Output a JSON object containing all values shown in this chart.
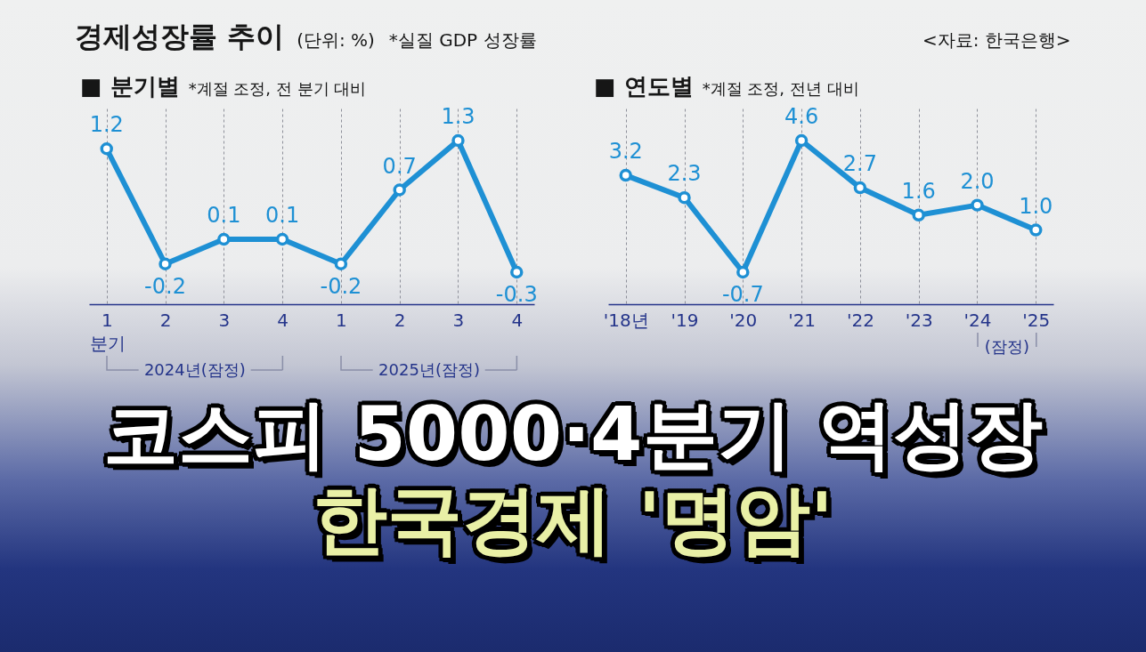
{
  "chart_data": [
    {
      "type": "line",
      "title": "■ 분기별",
      "subtitle": "*계절 조정, 전 분기 대비",
      "xlabel": "분기",
      "categories": [
        "1",
        "2",
        "3",
        "4",
        "1",
        "2",
        "3",
        "4"
      ],
      "values": [
        1.2,
        -0.2,
        0.1,
        0.1,
        -0.2,
        0.7,
        1.3,
        -0.3
      ],
      "value_labels": [
        "1.2",
        "-0.2",
        "0.1",
        "0.1",
        "-0.2",
        "0.7",
        "1.3",
        "-0.3"
      ],
      "color": "#1e90d4",
      "marker": "circle",
      "grid": "x",
      "annotations": [
        "경제성장률 추이",
        "(단위: %)",
        "*실질 GDP 성장률",
        "<자료: 한국은행>",
        "코스피 5000·4분기 역성장",
        "한국경제 '명암'",
        "2024년(잠정)",
        "2025년(잠정)"
      ]
    },
    {
      "type": "line",
      "title": "■ 연도별",
      "subtitle": "*계절 조정, 전년 대비",
      "categories": [
        "'18년",
        "'19",
        "'20",
        "'21",
        "'22",
        "'23",
        "'24",
        "'25"
      ],
      "values": [
        3.2,
        2.3,
        -0.7,
        4.6,
        2.7,
        1.6,
        2.0,
        1.0
      ],
      "value_labels": [
        "3.2",
        "2.3",
        "-0.7",
        "4.6",
        "2.7",
        "1.6",
        "2.0",
        "1.0"
      ],
      "color": "#1e90d4",
      "marker": "circle",
      "grid": "x",
      "annotations": [
        "(잠정)"
      ]
    }
  ]
}
